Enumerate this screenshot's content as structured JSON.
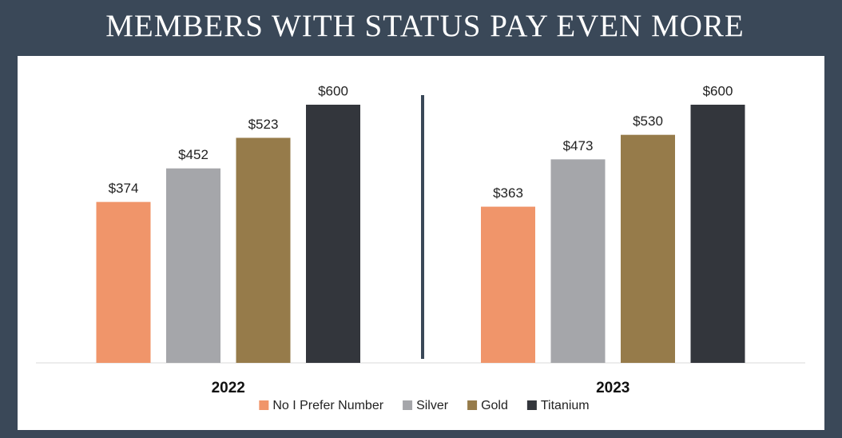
{
  "chart_data": {
    "type": "bar",
    "title": "MEMBERS WITH STATUS PAY EVEN MORE",
    "categories": [
      "2022",
      "2023"
    ],
    "series": [
      {
        "name": "No I Prefer Number",
        "color": "#f0956a",
        "values": [
          374,
          363
        ],
        "value_labels": [
          "$374",
          "$363"
        ]
      },
      {
        "name": "Silver",
        "color": "#a5a6aa",
        "values": [
          452,
          473
        ],
        "value_labels": [
          "$452",
          "$473"
        ]
      },
      {
        "name": "Gold",
        "color": "#967b4a",
        "values": [
          523,
          530
        ],
        "value_labels": [
          "$523",
          "$530"
        ]
      },
      {
        "name": "Titanium",
        "color": "#33363c",
        "values": [
          600,
          600
        ],
        "value_labels": [
          "$600",
          "$600"
        ]
      }
    ]
  }
}
